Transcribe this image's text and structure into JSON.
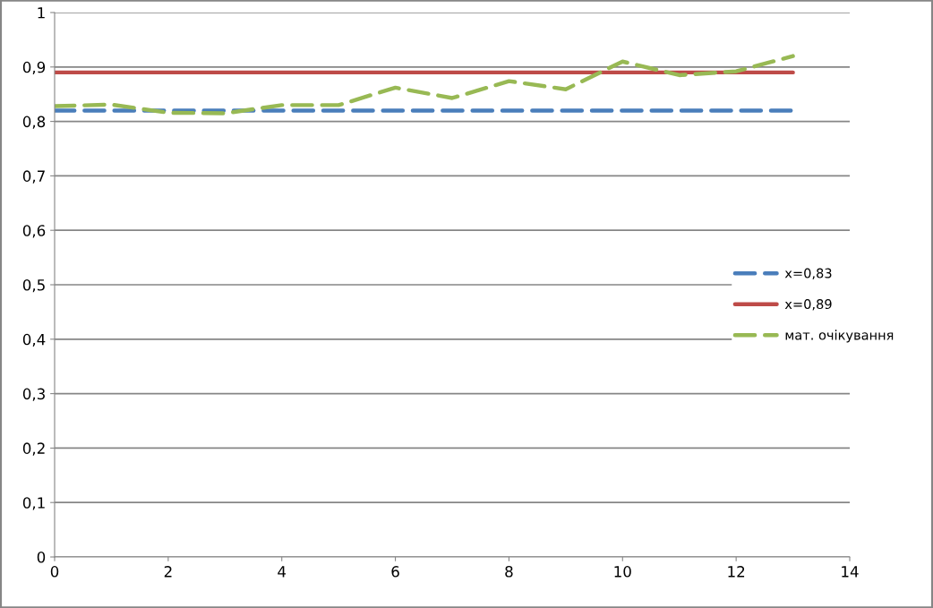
{
  "chart_data": {
    "type": "line",
    "xlim": [
      0,
      14
    ],
    "xticks": [
      0,
      2,
      4,
      6,
      8,
      10,
      12,
      14
    ],
    "ylim": [
      0,
      1
    ],
    "yticks": [
      {
        "value": 0,
        "label": "0"
      },
      {
        "value": 0.1,
        "label": "0,1"
      },
      {
        "value": 0.2,
        "label": "0,2"
      },
      {
        "value": 0.3,
        "label": "0,3"
      },
      {
        "value": 0.4,
        "label": "0,4"
      },
      {
        "value": 0.5,
        "label": "0,5"
      },
      {
        "value": 0.6,
        "label": "0,6"
      },
      {
        "value": 0.7,
        "label": "0,7"
      },
      {
        "value": 0.8,
        "label": "0,8"
      },
      {
        "value": 0.9,
        "label": "0,9"
      },
      {
        "value": 1,
        "label": "1"
      }
    ],
    "grid": "y",
    "legend": "right",
    "marker": "none",
    "x": [
      0,
      1,
      2,
      3,
      4,
      5,
      6,
      7,
      8,
      9,
      10,
      11,
      12,
      13
    ],
    "series": [
      {
        "name": "x=0,83",
        "color": "#4a7ebb",
        "line_style": "dashed",
        "values": [
          0.82,
          0.82,
          0.82,
          0.82,
          0.82,
          0.82,
          0.82,
          0.82,
          0.82,
          0.82,
          0.82,
          0.82,
          0.82,
          0.82
        ]
      },
      {
        "name": "x=0,89",
        "color": "#be4b48",
        "line_style": "solid",
        "values": [
          0.89,
          0.89,
          0.89,
          0.89,
          0.89,
          0.89,
          0.89,
          0.89,
          0.89,
          0.89,
          0.89,
          0.89,
          0.89,
          0.89
        ]
      },
      {
        "name": "мат. очікування",
        "color": "#98b954",
        "line_style": "dashed",
        "values": [
          0.828,
          0.831,
          0.816,
          0.815,
          0.83,
          0.83,
          0.862,
          0.843,
          0.874,
          0.859,
          0.91,
          0.885,
          0.892,
          0.92
        ]
      }
    ]
  }
}
